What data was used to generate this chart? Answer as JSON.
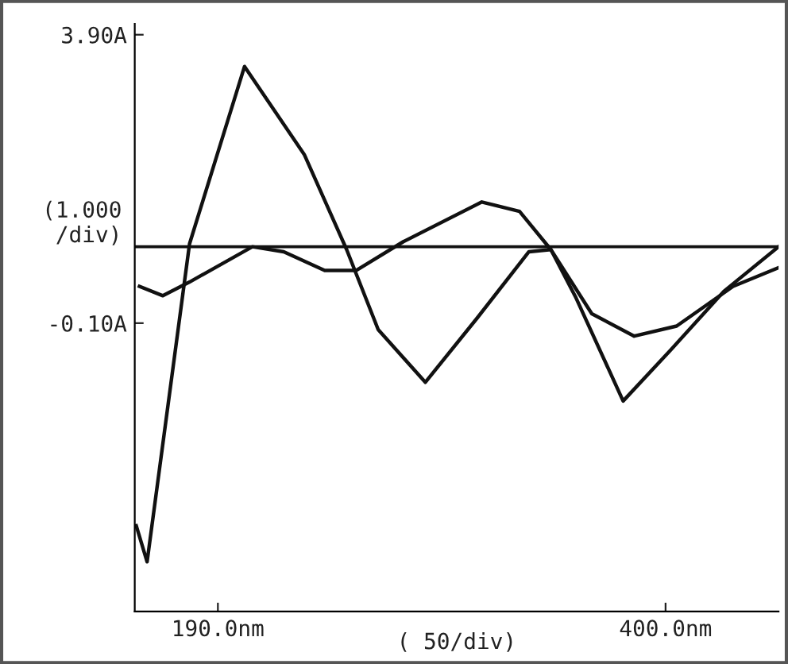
{
  "chart_data": {
    "type": "line",
    "xlim": [
      151,
      453
    ],
    "ylim": [
      -4.1,
      4.05
    ],
    "xticks": [
      {
        "value": 190,
        "label": "190.0nm"
      },
      {
        "value": 400,
        "label": "400.0nm"
      }
    ],
    "yticks": [
      {
        "value": 3.9,
        "label": "3.90A"
      },
      {
        "value": -0.1,
        "label": "-0.10A"
      }
    ],
    "ylabel": "(1.000\n/div)",
    "xlabel": "( 50/div)",
    "ref_lines": [
      {
        "axis": "y",
        "value": 0.96,
        "color": "#111111"
      }
    ],
    "grid": false,
    "legend": false,
    "marker": "none",
    "line_style": "solid",
    "series": [
      {
        "color": "#111111",
        "x": [
          151.7,
          156.8,
          176.7,
          202.5,
          230.5,
          250.4,
          265.2,
          287.3,
          311.6,
          335.9,
          346.2,
          358.0,
          380.1,
          402.2,
          427.3,
          453.0
        ],
        "values": [
          -2.91,
          -3.41,
          1.0,
          3.46,
          2.24,
          0.92,
          -0.19,
          -0.92,
          -0.03,
          0.89,
          0.92,
          0.25,
          -1.18,
          -0.48,
          0.34,
          0.96
        ]
      },
      {
        "color": "#111111",
        "x": [
          153.2,
          164.2,
          176.7,
          206.2,
          220.9,
          240.1,
          254.8,
          277.0,
          313.8,
          331.5,
          346.2,
          365.4,
          385.3,
          405.2,
          431.7,
          453.0
        ],
        "values": [
          0.41,
          0.28,
          0.47,
          0.96,
          0.89,
          0.63,
          0.63,
          1.03,
          1.58,
          1.45,
          0.92,
          0.03,
          -0.28,
          -0.14,
          0.41,
          0.67
        ]
      }
    ]
  }
}
